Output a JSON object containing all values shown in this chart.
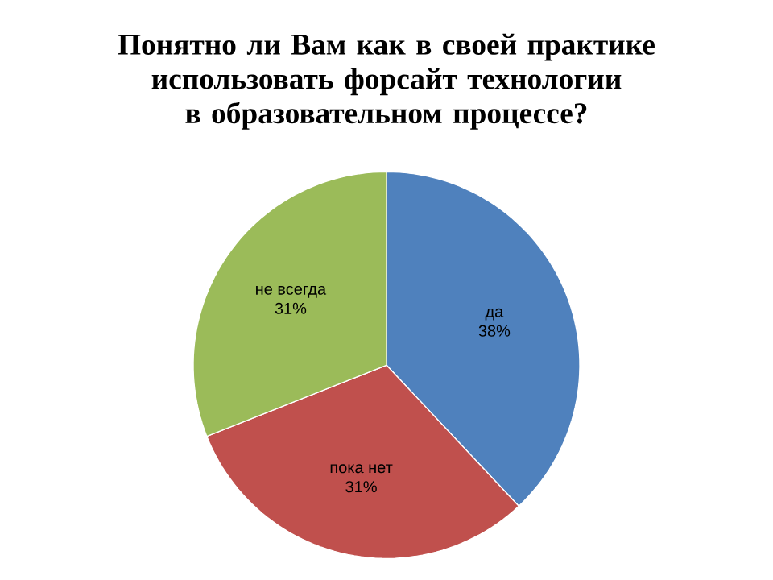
{
  "chart_data": {
    "type": "pie",
    "title": "Понятно ли Вам как в своей практике использовать форсайт технологии в образовательном процессе?",
    "categories": [
      "да",
      "пока нет",
      "не всегда"
    ],
    "values": [
      38,
      31,
      31
    ],
    "value_labels": [
      "38%",
      "31%",
      "31%"
    ],
    "colors": [
      "#4f81bd",
      "#c0504d",
      "#9bbb59"
    ]
  }
}
